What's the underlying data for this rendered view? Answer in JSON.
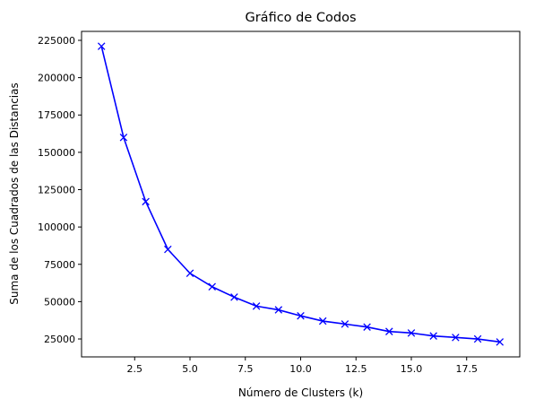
{
  "chart_data": {
    "type": "line",
    "title": "Gráfico de Codos",
    "xlabel": "Número de Clusters (k)",
    "ylabel": "Suma de los Cuadrados de las Distancias",
    "xlim": [
      0.1,
      19.9
    ],
    "ylim": [
      13000,
      231000
    ],
    "x_ticks": [
      2.5,
      5.0,
      7.5,
      10.0,
      12.5,
      15.0,
      17.5
    ],
    "x_tick_labels": [
      "2.5",
      "5.0",
      "7.5",
      "10.0",
      "12.5",
      "15.0",
      "17.5"
    ],
    "y_ticks": [
      25000,
      50000,
      75000,
      100000,
      125000,
      150000,
      175000,
      200000,
      225000
    ],
    "y_tick_labels": [
      "25000",
      "50000",
      "75000",
      "100000",
      "125000",
      "150000",
      "175000",
      "200000",
      "225000"
    ],
    "grid": false,
    "series": [
      {
        "color": "#0000ff",
        "marker": "x",
        "x": [
          1,
          2,
          3,
          4,
          5,
          6,
          7,
          8,
          9,
          10,
          11,
          12,
          13,
          14,
          15,
          16,
          17,
          18,
          19
        ],
        "values": [
          221000,
          160000,
          117000,
          85000,
          69000,
          60000,
          53000,
          47000,
          44500,
          40500,
          37000,
          35000,
          33000,
          30000,
          29000,
          27000,
          26000,
          25000,
          23000
        ]
      }
    ]
  }
}
